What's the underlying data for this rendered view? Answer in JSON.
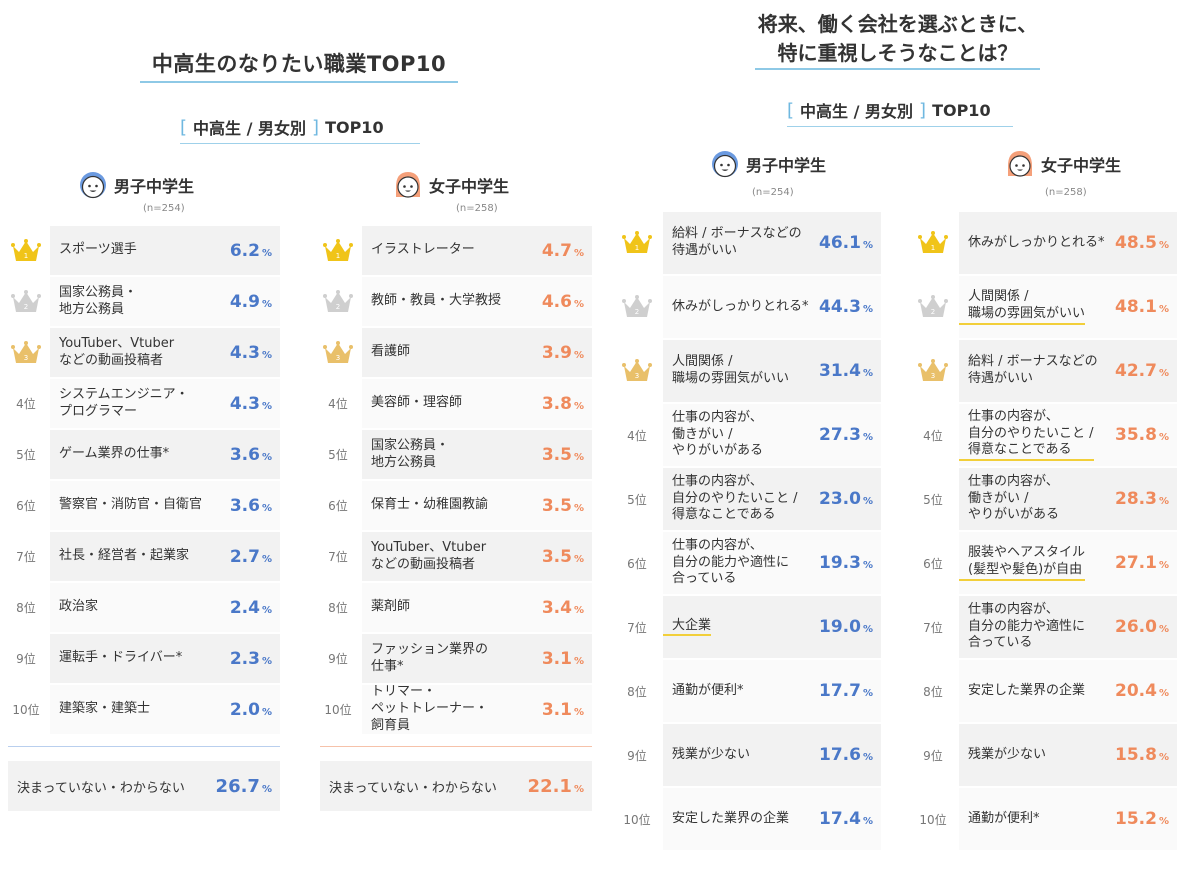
{
  "left": {
    "title": "中高生のなりたい職業TOP10",
    "subtitle": {
      "open": "[",
      "label": "中高生 / 男女別",
      "close": "]",
      "suffix": "TOP10"
    },
    "boys": {
      "label": "男子中学生",
      "n": "(n=254)"
    },
    "girls": {
      "label": "女子中学生",
      "n": "(n=258)"
    },
    "boys_rows": [
      {
        "rank": "1",
        "text": "スポーツ選手",
        "value": "6.2"
      },
      {
        "rank": "2",
        "text": "国家公務員・\n地方公務員",
        "value": "4.9"
      },
      {
        "rank": "3",
        "text": "YouTuber、Vtuber\nなどの動画投稿者",
        "value": "4.3"
      },
      {
        "rank": "4位",
        "text": "システムエンジニア・\nプログラマー",
        "value": "4.3"
      },
      {
        "rank": "5位",
        "text": "ゲーム業界の仕事*",
        "value": "3.6"
      },
      {
        "rank": "6位",
        "text": "警察官・消防官・自衛官",
        "value": "3.6"
      },
      {
        "rank": "7位",
        "text": "社長・経営者・起業家",
        "value": "2.7"
      },
      {
        "rank": "8位",
        "text": "政治家",
        "value": "2.4"
      },
      {
        "rank": "9位",
        "text": "運転手・ドライバー*",
        "value": "2.3"
      },
      {
        "rank": "10位",
        "text": "建築家・建築士",
        "value": "2.0"
      }
    ],
    "girls_rows": [
      {
        "rank": "1",
        "text": "イラストレーター",
        "value": "4.7"
      },
      {
        "rank": "2",
        "text": "教師・教員・大学教授",
        "value": "4.6"
      },
      {
        "rank": "3",
        "text": "看護師",
        "value": "3.9"
      },
      {
        "rank": "4位",
        "text": "美容師・理容師",
        "value": "3.8"
      },
      {
        "rank": "5位",
        "text": "国家公務員・\n地方公務員",
        "value": "3.5"
      },
      {
        "rank": "6位",
        "text": "保育士・幼稚園教諭",
        "value": "3.5"
      },
      {
        "rank": "7位",
        "text": "YouTuber、Vtuber\nなどの動画投稿者",
        "value": "3.5"
      },
      {
        "rank": "8位",
        "text": "薬剤師",
        "value": "3.4"
      },
      {
        "rank": "9位",
        "text": "ファッション業界の\n仕事*",
        "value": "3.1"
      },
      {
        "rank": "10位",
        "text": "トリマー・\nペットトレーナー・\n飼育員",
        "value": "3.1"
      }
    ],
    "boys_undecided": {
      "text": "決まっていない・わからない",
      "value": "26.7"
    },
    "girls_undecided": {
      "text": "決まっていない・わからない",
      "value": "22.1"
    }
  },
  "right": {
    "title_line1": "将来、働く会社を選ぶときに、",
    "title_line2": "特に重視しそうなことは？",
    "subtitle": {
      "open": "[",
      "label": "中高生 / 男女別",
      "close": "]",
      "suffix": "TOP10"
    },
    "boys": {
      "label": "男子中学生",
      "n": "(n=254)"
    },
    "girls": {
      "label": "女子中学生",
      "n": "(n=258)"
    },
    "boys_rows": [
      {
        "rank": "1",
        "text": "給料 / ボーナスなどの\n待遇がいい",
        "value": "46.1"
      },
      {
        "rank": "2",
        "text": "休みがしっかりとれる*",
        "value": "44.3"
      },
      {
        "rank": "3",
        "text": "人間関係 /\n職場の雰囲気がいい",
        "value": "31.4"
      },
      {
        "rank": "4位",
        "text": "仕事の内容が、\n働きがい /\nやりがいがある",
        "value": "27.3"
      },
      {
        "rank": "5位",
        "text": "仕事の内容が、\n自分のやりたいこと /\n得意なことである",
        "value": "23.0"
      },
      {
        "rank": "6位",
        "text": "仕事の内容が、\n自分の能力や適性に\n合っている",
        "value": "19.3"
      },
      {
        "rank": "7位",
        "text": "大企業",
        "value": "19.0",
        "hl": true
      },
      {
        "rank": "8位",
        "text": "通勤が便利*",
        "value": "17.7"
      },
      {
        "rank": "9位",
        "text": "残業が少ない",
        "value": "17.6"
      },
      {
        "rank": "10位",
        "text": "安定した業界の企業",
        "value": "17.4"
      }
    ],
    "girls_rows": [
      {
        "rank": "1",
        "text": "休みがしっかりとれる*",
        "value": "48.5"
      },
      {
        "rank": "2",
        "text": "人間関係 /\n職場の雰囲気がいい",
        "value": "48.1",
        "hl": true
      },
      {
        "rank": "3",
        "text": "給料 / ボーナスなどの\n待遇がいい",
        "value": "42.7"
      },
      {
        "rank": "4位",
        "text": "仕事の内容が、\n自分のやりたいこと /\n得意なことである",
        "value": "35.8",
        "hl": true
      },
      {
        "rank": "5位",
        "text": "仕事の内容が、\n働きがい /\nやりがいがある",
        "value": "28.3"
      },
      {
        "rank": "6位",
        "text": "服装やヘアスタイル\n(髪型や髪色)が自由",
        "value": "27.1",
        "hl": true
      },
      {
        "rank": "7位",
        "text": "仕事の内容が、\n自分の能力や適性に\n合っている",
        "value": "26.0"
      },
      {
        "rank": "8位",
        "text": "安定した業界の企業",
        "value": "20.4"
      },
      {
        "rank": "9位",
        "text": "残業が少ない",
        "value": "15.8"
      },
      {
        "rank": "10位",
        "text": "通勤が便利*",
        "value": "15.2"
      }
    ]
  },
  "percent_unit": "%",
  "colors": {
    "blue": "#4a78c8",
    "orange": "#ef8a5c",
    "gold": "#f0c419",
    "silver": "#cfcfcf",
    "bronze": "#e9c06a",
    "accent_line": "#8ec9e6"
  }
}
